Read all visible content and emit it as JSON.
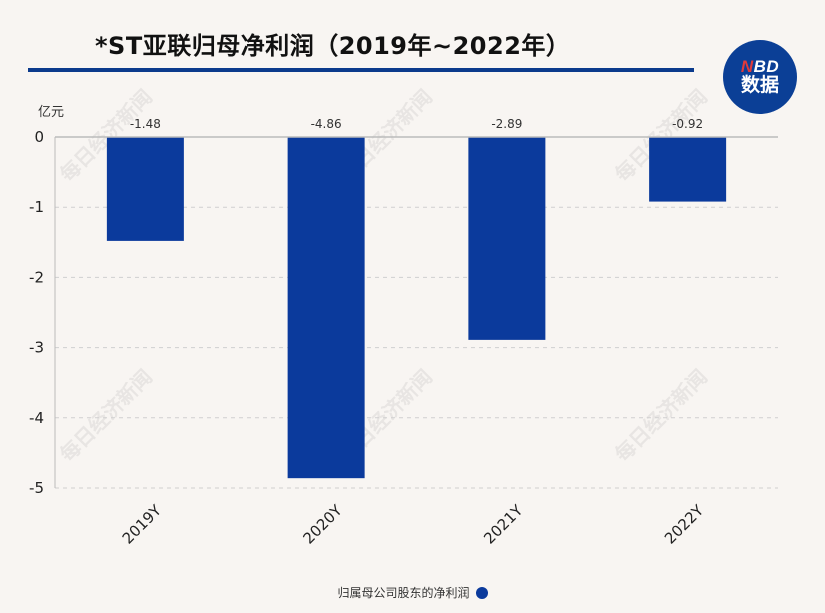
{
  "title": "*ST亚联归母净利润（2019年~2022年）",
  "logo": {
    "line1_n": "N",
    "line1_rest": "BD",
    "line2": "数据"
  },
  "watermark_text": "每日经济新闻",
  "legend": {
    "label": "归属母公司股东的净利润",
    "color": "#0b3a9c"
  },
  "chart_data": {
    "type": "bar",
    "categories": [
      "2019Y",
      "2020Y",
      "2021Y",
      "2022Y"
    ],
    "series": [
      {
        "values": [
          -1.48,
          -4.86,
          -2.89,
          -0.92
        ],
        "color": "#0b3a9c"
      }
    ],
    "data_labels": [
      "-1.48",
      "-4.86",
      "-2.89",
      "-0.92"
    ],
    "title": "*ST亚联归母净利润（2019年~2022年）",
    "xlabel": "",
    "ylabel": "亿元",
    "ylim": [
      -5,
      0
    ],
    "yticks": [
      0,
      -1,
      -2,
      -3,
      -4,
      -5
    ],
    "grid": true,
    "legend_position": "bottom"
  }
}
